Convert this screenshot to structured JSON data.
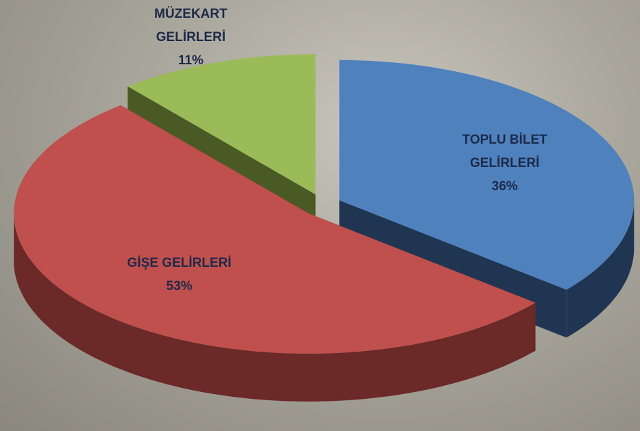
{
  "chart_data": {
    "type": "pie3d",
    "categories": [
      "TOPLU BİLET GELİRLERİ",
      "GİŞE GELİRLERİ",
      "MÜZEKART GELİRLERİ"
    ],
    "values": [
      36,
      53,
      11
    ],
    "value_labels": [
      "36%",
      "53%",
      "11%"
    ],
    "colors": [
      "#4f81bd",
      "#c0504d",
      "#9bbb59"
    ],
    "side_colors": [
      "#1f3552",
      "#6b2927",
      "#4a5a24"
    ]
  }
}
